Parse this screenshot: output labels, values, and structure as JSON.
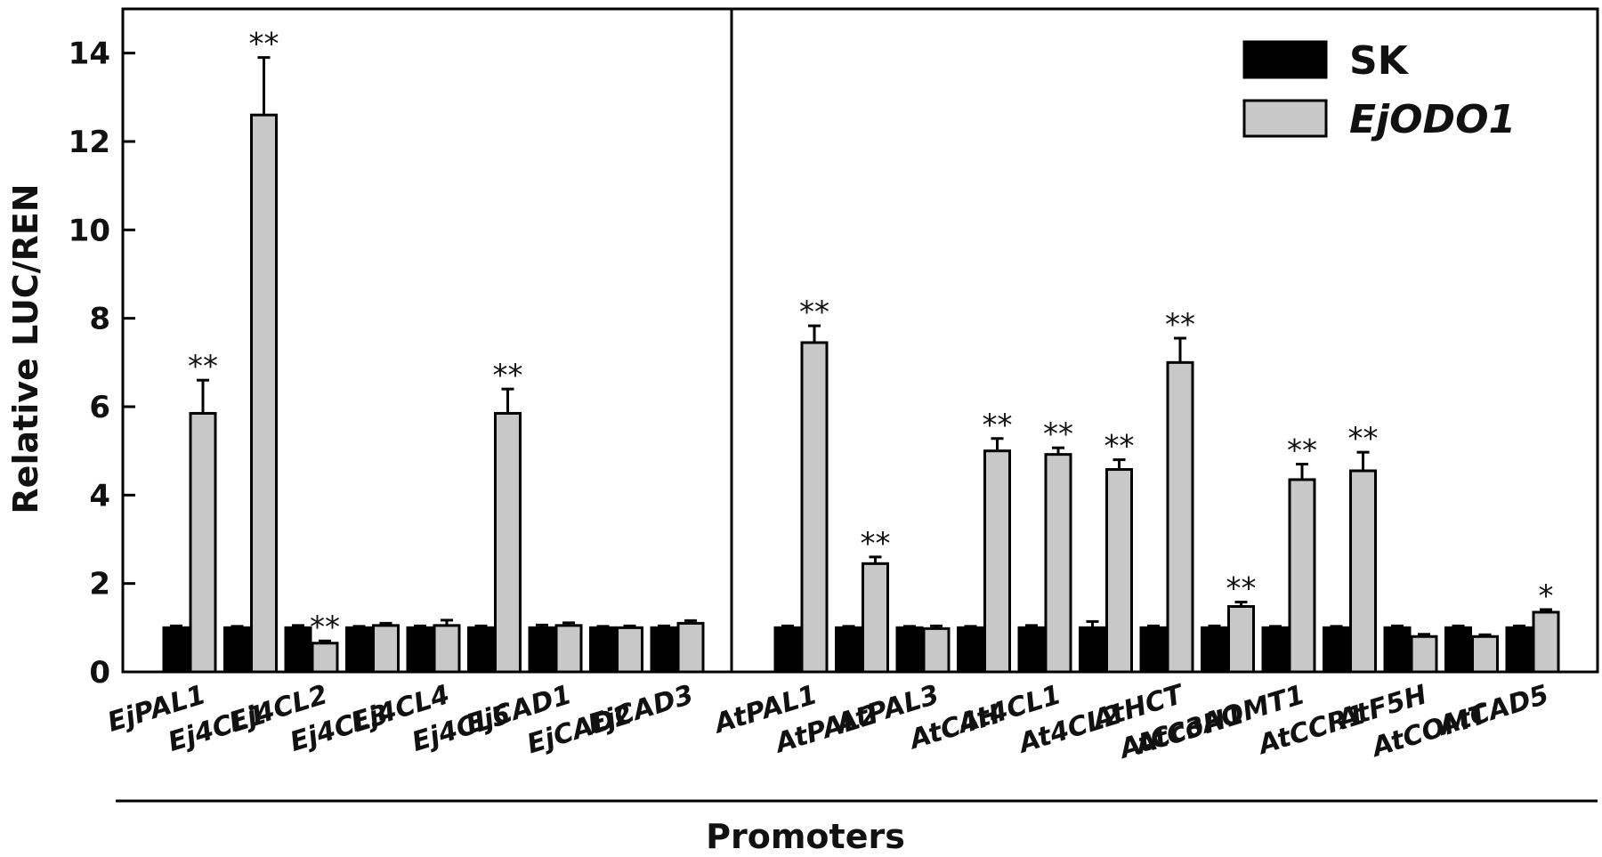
{
  "chart_data": {
    "type": "bar",
    "ylabel": "Relative LUC/REN",
    "xlabel": "Promoters",
    "ylim": [
      0,
      15
    ],
    "yticks": [
      0,
      2,
      4,
      6,
      8,
      10,
      12,
      14
    ],
    "legend_position": "top-right",
    "series": [
      {
        "name": "SK",
        "color": "#000000",
        "italic": false
      },
      {
        "name": "EjODO1",
        "color": "#c8c8c8",
        "italic": true
      }
    ],
    "panels": [
      {
        "categories": [
          "EjPAL1",
          "Ej4CL1",
          "Ej4CL2",
          "Ej4CL3",
          "Ej4CL4",
          "Ej4CL5",
          "EjCAD1",
          "EjCAD2",
          "EjCAD3"
        ],
        "SK": [
          1.0,
          1.0,
          1.0,
          1.0,
          1.0,
          1.0,
          1.0,
          1.0,
          1.0
        ],
        "SK_err": [
          0.04,
          0.03,
          0.05,
          0.03,
          0.04,
          0.04,
          0.06,
          0.03,
          0.04
        ],
        "EjODO1": [
          5.85,
          12.6,
          0.65,
          1.05,
          1.05,
          5.85,
          1.05,
          1.0,
          1.1
        ],
        "EjODO1_err": [
          0.75,
          1.3,
          0.05,
          0.05,
          0.12,
          0.55,
          0.06,
          0.04,
          0.06
        ],
        "significance": [
          "**",
          "**",
          "**",
          "",
          "",
          "**",
          "",
          "",
          ""
        ]
      },
      {
        "categories": [
          "AtPAL1",
          "AtPAL2",
          "AtPAL3",
          "AtC4H",
          "At4CL1",
          "At4CL2",
          "AtHCT",
          "AtC3H1",
          "AtCcoAOMT1",
          "AtCCR1",
          "AtF5H",
          "AtCOMT",
          "AtCAD5"
        ],
        "SK": [
          1.0,
          1.0,
          1.0,
          1.0,
          1.0,
          1.0,
          1.0,
          1.0,
          1.0,
          1.0,
          1.0,
          1.0,
          1.0
        ],
        "SK_err": [
          0.04,
          0.03,
          0.03,
          0.03,
          0.05,
          0.14,
          0.04,
          0.04,
          0.03,
          0.03,
          0.04,
          0.04,
          0.04
        ],
        "EjODO1": [
          7.45,
          2.45,
          0.98,
          5.0,
          4.92,
          4.58,
          7.0,
          1.48,
          4.35,
          4.55,
          0.8,
          0.8,
          1.35
        ],
        "EjODO1_err": [
          0.38,
          0.15,
          0.06,
          0.28,
          0.15,
          0.22,
          0.55,
          0.1,
          0.35,
          0.42,
          0.05,
          0.04,
          0.06
        ],
        "significance": [
          "**",
          "**",
          "",
          "**",
          "**",
          "**",
          "**",
          "**",
          "**",
          "**",
          "",
          "",
          "*"
        ]
      }
    ]
  }
}
